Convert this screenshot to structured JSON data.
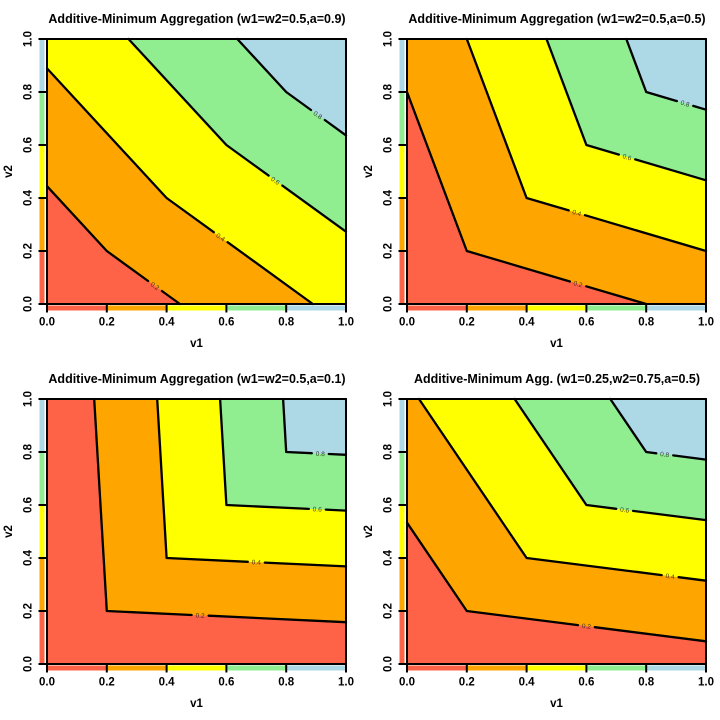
{
  "figure": {
    "background": "#ffffff",
    "rows": 2,
    "cols": 2
  },
  "palette": {
    "band_fills": [
      "#FF6347",
      "#FFA500",
      "#FFFF00",
      "#90EE90",
      "#ADD8E6"
    ],
    "band_breaks": [
      0,
      0.2,
      0.4,
      0.6,
      0.8,
      1.0
    ],
    "contour_line_color": "#000000",
    "contour_label_color": "#222222",
    "text_color": "#000000"
  },
  "chart_data": [
    {
      "type": "filled-contour",
      "title": "Additive-Minimum Aggregation (w1=w2=0.5,a=0.9)",
      "params": {
        "w1": 0.5,
        "w2": 0.5,
        "a": 0.9
      },
      "xlabel": "v1",
      "ylabel": "v2",
      "xlim": [
        0,
        1
      ],
      "ylim": [
        0,
        1
      ],
      "xtick_labels": [
        "0.0",
        "0.2",
        "0.4",
        "0.6",
        "0.8",
        "1.0"
      ],
      "ytick_labels": [
        "0.0",
        "0.2",
        "0.4",
        "0.6",
        "0.8",
        "1.0"
      ],
      "levels": [
        {
          "value": 0.2,
          "label": "0.2",
          "points": [
            [
              0,
              0.4444
            ],
            [
              0.2,
              0.2
            ],
            [
              0.4444,
              0
            ]
          ],
          "label_t": 0.66
        },
        {
          "value": 0.4,
          "label": "0.4",
          "points": [
            [
              0,
              0.8889
            ],
            [
              0.4,
              0.4
            ],
            [
              0.8889,
              0
            ]
          ],
          "label_t": 0.37
        },
        {
          "value": 0.6,
          "label": "0.6",
          "points": [
            [
              0.2727,
              1
            ],
            [
              0.6,
              0.6
            ],
            [
              1,
              0.2727
            ]
          ],
          "label_t": 0.41
        },
        {
          "value": 0.8,
          "label": "0.8",
          "points": [
            [
              0.6364,
              1
            ],
            [
              0.8,
              0.8
            ],
            [
              1,
              0.6364
            ]
          ],
          "label_t": 0.53
        }
      ]
    },
    {
      "type": "filled-contour",
      "title": "Additive-Minimum Aggregation (w1=w2=0.5,a=0.5)",
      "params": {
        "w1": 0.5,
        "w2": 0.5,
        "a": 0.5
      },
      "xlabel": "v1",
      "ylabel": "v2",
      "xlim": [
        0,
        1
      ],
      "ylim": [
        0,
        1
      ],
      "xtick_labels": [
        "0.0",
        "0.2",
        "0.4",
        "0.6",
        "0.8",
        "1.0"
      ],
      "ytick_labels": [
        "0.0",
        "0.2",
        "0.4",
        "0.6",
        "0.8",
        "1.0"
      ],
      "levels": [
        {
          "value": 0.2,
          "label": "0.2",
          "points": [
            [
              0,
              0.8
            ],
            [
              0.2,
              0.2
            ],
            [
              0.8,
              0
            ]
          ],
          "label_t": 0.62
        },
        {
          "value": 0.4,
          "label": "0.4",
          "points": [
            [
              0.2,
              1
            ],
            [
              0.4,
              0.4
            ],
            [
              1,
              0.2
            ]
          ],
          "label_t": 0.28
        },
        {
          "value": 0.6,
          "label": "0.6",
          "points": [
            [
              0.4667,
              1
            ],
            [
              0.6,
              0.6
            ],
            [
              1,
              0.4667
            ]
          ],
          "label_t": 0.34
        },
        {
          "value": 0.8,
          "label": "0.8",
          "points": [
            [
              0.7333,
              1
            ],
            [
              0.8,
              0.8
            ],
            [
              1,
              0.7333
            ]
          ],
          "label_t": 0.65
        }
      ]
    },
    {
      "type": "filled-contour",
      "title": "Additive-Minimum Aggregation (w1=w2=0.5,a=0.1)",
      "params": {
        "w1": 0.5,
        "w2": 0.5,
        "a": 0.1
      },
      "xlabel": "v1",
      "ylabel": "v2",
      "xlim": [
        0,
        1
      ],
      "ylim": [
        0,
        1
      ],
      "xtick_labels": [
        "0.0",
        "0.2",
        "0.4",
        "0.6",
        "0.8",
        "1.0"
      ],
      "ytick_labels": [
        "0.0",
        "0.2",
        "0.4",
        "0.6",
        "0.8",
        "1.0"
      ],
      "levels": [
        {
          "value": 0.2,
          "label": "0.2",
          "points": [
            [
              0.1579,
              1
            ],
            [
              0.2,
              0.2
            ],
            [
              1,
              0.1579
            ]
          ],
          "label_t": 0.39
        },
        {
          "value": 0.4,
          "label": "0.4",
          "points": [
            [
              0.3684,
              1
            ],
            [
              0.4,
              0.4
            ],
            [
              1,
              0.3684
            ]
          ],
          "label_t": 0.5
        },
        {
          "value": 0.6,
          "label": "0.6",
          "points": [
            [
              0.5789,
              1
            ],
            [
              0.6,
              0.6
            ],
            [
              1,
              0.5789
            ]
          ],
          "label_t": 0.76
        },
        {
          "value": 0.8,
          "label": "0.8",
          "points": [
            [
              0.7895,
              1
            ],
            [
              0.8,
              0.8
            ],
            [
              1,
              0.7895
            ]
          ],
          "label_t": 0.57
        }
      ]
    },
    {
      "type": "filled-contour",
      "title": "Additive-Minimum Agg. (w1=0.25,w2=0.75,a=0.5)",
      "params": {
        "w1": 0.25,
        "w2": 0.75,
        "a": 0.5
      },
      "xlabel": "v1",
      "ylabel": "v2",
      "xlim": [
        0,
        1
      ],
      "ylim": [
        0,
        1
      ],
      "xtick_labels": [
        "0.0",
        "0.2",
        "0.4",
        "0.6",
        "0.8",
        "1.0"
      ],
      "ytick_labels": [
        "0.0",
        "0.2",
        "0.4",
        "0.6",
        "0.8",
        "1.0"
      ],
      "levels": [
        {
          "value": 0.2,
          "label": "0.2",
          "points": [
            [
              0,
              0.5333
            ],
            [
              0.2,
              0.2
            ],
            [
              1,
              0.0857
            ]
          ],
          "label_t": 0.5
        },
        {
          "value": 0.4,
          "label": "0.4",
          "points": [
            [
              0.04,
              1
            ],
            [
              0.4,
              0.4
            ],
            [
              1,
              0.3143
            ]
          ],
          "label_t": 0.8
        },
        {
          "value": 0.6,
          "label": "0.6",
          "points": [
            [
              0.36,
              1
            ],
            [
              0.6,
              0.6
            ],
            [
              1,
              0.5429
            ]
          ],
          "label_t": 0.32
        },
        {
          "value": 0.8,
          "label": "0.8",
          "points": [
            [
              0.68,
              1
            ],
            [
              0.8,
              0.8
            ],
            [
              1,
              0.7714
            ]
          ],
          "label_t": 0.31
        }
      ]
    }
  ]
}
